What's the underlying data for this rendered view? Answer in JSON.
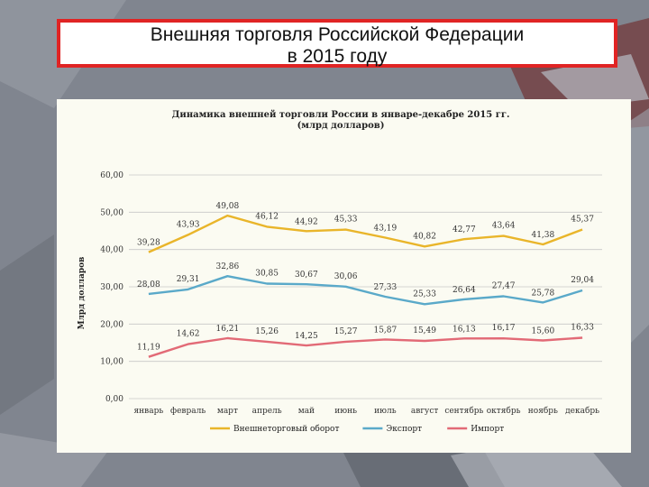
{
  "slide": {
    "title_line1": "Внешняя торговля Российской Федерации",
    "title_line2": "в 2015 году"
  },
  "colors": {
    "turnover": "#e9b52a",
    "export": "#5aa9c9",
    "import": "#e26a76",
    "frame": "#e02424"
  },
  "chart_data": {
    "type": "line",
    "title": "Динамика внешней торговли России в январе-декабре 2015 гг.",
    "subtitle": "(млрд долларов)",
    "ylabel": "Млрд долларов",
    "xlabel": "",
    "ylim": [
      0,
      60
    ],
    "yticks": [
      "0,00",
      "10,00",
      "20,00",
      "30,00",
      "40,00",
      "50,00",
      "60,00"
    ],
    "grid": true,
    "legend_position": "bottom",
    "categories": [
      "январь",
      "февраль",
      "март",
      "апрель",
      "май",
      "июнь",
      "июль",
      "август",
      "сентябрь",
      "октябрь",
      "ноябрь",
      "декабрь"
    ],
    "series": [
      {
        "name": "Внешнеторговый оборот",
        "color": "#e9b52a",
        "values": [
          39.28,
          43.93,
          49.08,
          46.12,
          44.92,
          45.33,
          43.19,
          40.82,
          42.77,
          43.64,
          41.38,
          45.37
        ],
        "labels": [
          "39,28",
          "43,93",
          "49,08",
          "46,12",
          "44,92",
          "45,33",
          "43,19",
          "40,82",
          "42,77",
          "43,64",
          "41,38",
          "45,37"
        ]
      },
      {
        "name": "Экспорт",
        "color": "#5aa9c9",
        "values": [
          28.08,
          29.31,
          32.86,
          30.85,
          30.67,
          30.06,
          27.33,
          25.33,
          26.64,
          27.47,
          25.78,
          29.04
        ],
        "labels": [
          "28,08",
          "29,31",
          "32,86",
          "30,85",
          "30,67",
          "30,06",
          "27,33",
          "25,33",
          "26,64",
          "27,47",
          "25,78",
          "29,04"
        ]
      },
      {
        "name": "Импорт",
        "color": "#e26a76",
        "values": [
          11.19,
          14.62,
          16.21,
          15.26,
          14.25,
          15.27,
          15.87,
          15.49,
          16.13,
          16.17,
          15.6,
          16.33
        ],
        "labels": [
          "11,19",
          "14,62",
          "16,21",
          "15,26",
          "14,25",
          "15,27",
          "15,87",
          "15,49",
          "16,13",
          "16,17",
          "15,60",
          "16,33"
        ]
      }
    ]
  }
}
